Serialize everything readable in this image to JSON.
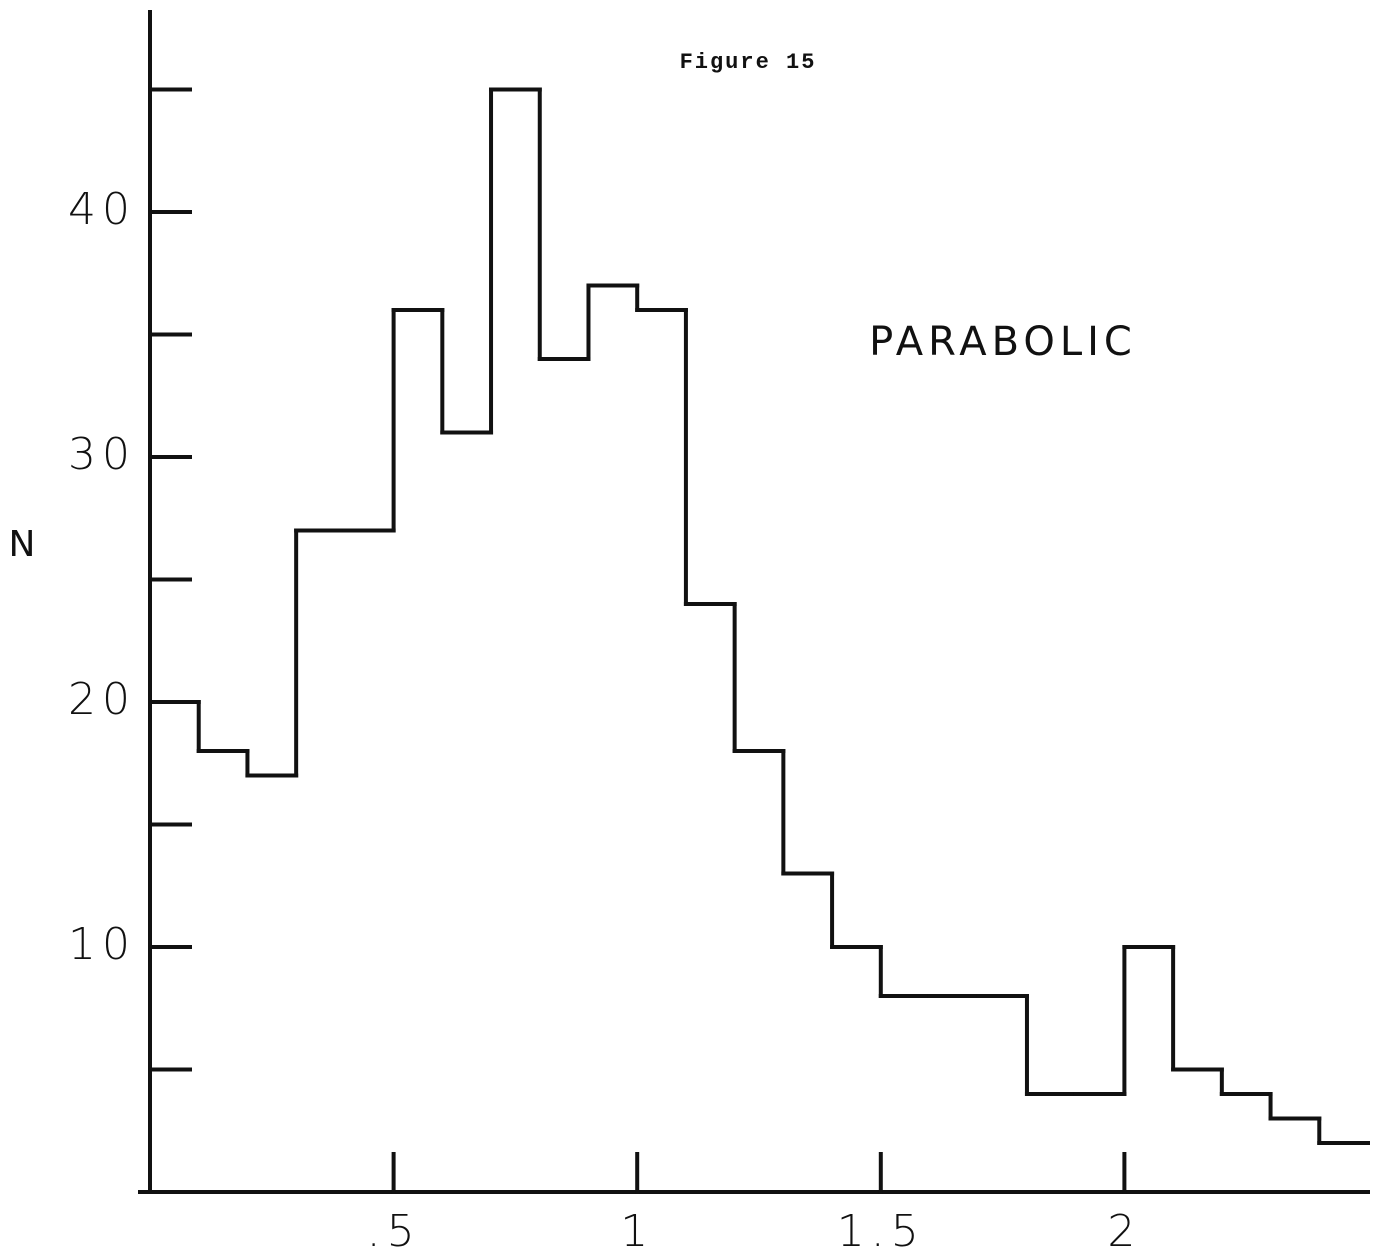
{
  "chart_data": {
    "type": "histogram",
    "title": "Figure 15",
    "annotation": "PARABOLIC",
    "ylabel": "N",
    "bins": [
      0,
      0.1,
      0.2,
      0.3,
      0.4,
      0.5,
      0.6,
      0.7,
      0.8,
      0.9,
      1.0,
      1.1,
      1.2,
      1.3,
      1.4,
      1.5,
      1.6,
      1.7,
      1.8,
      1.9,
      2.0,
      2.1,
      2.2,
      2.3,
      2.4,
      2.5
    ],
    "values": [
      20,
      18,
      17,
      27,
      27,
      36,
      31,
      45,
      34,
      37,
      36,
      24,
      18,
      13,
      10,
      8,
      8,
      8,
      4,
      4,
      10,
      5,
      4,
      3,
      2
    ],
    "color": "#111111",
    "xlim": [
      0,
      2.5
    ],
    "xticks": [
      {
        "value": 0.5,
        "label": ".5"
      },
      1,
      1.5,
      2
    ],
    "ylim": [
      0,
      48
    ],
    "yticks": [
      10,
      20,
      30,
      40
    ],
    "yticks_minor": [
      5,
      15,
      25,
      35,
      45
    ]
  }
}
